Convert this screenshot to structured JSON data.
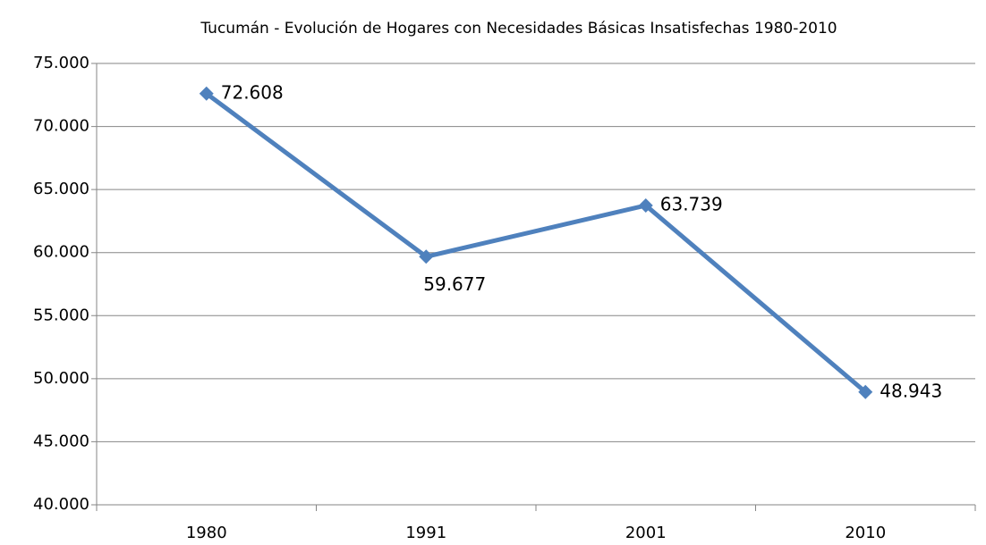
{
  "chart_data": {
    "type": "line",
    "title": "Tucumán - Evolución de Hogares con Necesidades Básicas Insatisfechas 1980-2010",
    "categories": [
      "1980",
      "1991",
      "2001",
      "2010"
    ],
    "values": [
      72608,
      59677,
      63739,
      48943
    ],
    "value_labels": [
      "72.608",
      "59.677",
      "63.739",
      "48.943"
    ],
    "color": "#4f81bd",
    "ylim": [
      40000,
      75000
    ],
    "yticks": [
      {
        "value": 40000,
        "label": "40.000"
      },
      {
        "value": 45000,
        "label": "45.000"
      },
      {
        "value": 50000,
        "label": "50.000"
      },
      {
        "value": 55000,
        "label": "55.000"
      },
      {
        "value": 60000,
        "label": "60.000"
      },
      {
        "value": 65000,
        "label": "65.000"
      },
      {
        "value": 70000,
        "label": "70.000"
      },
      {
        "value": 75000,
        "label": "75.000"
      }
    ],
    "grid": true
  }
}
